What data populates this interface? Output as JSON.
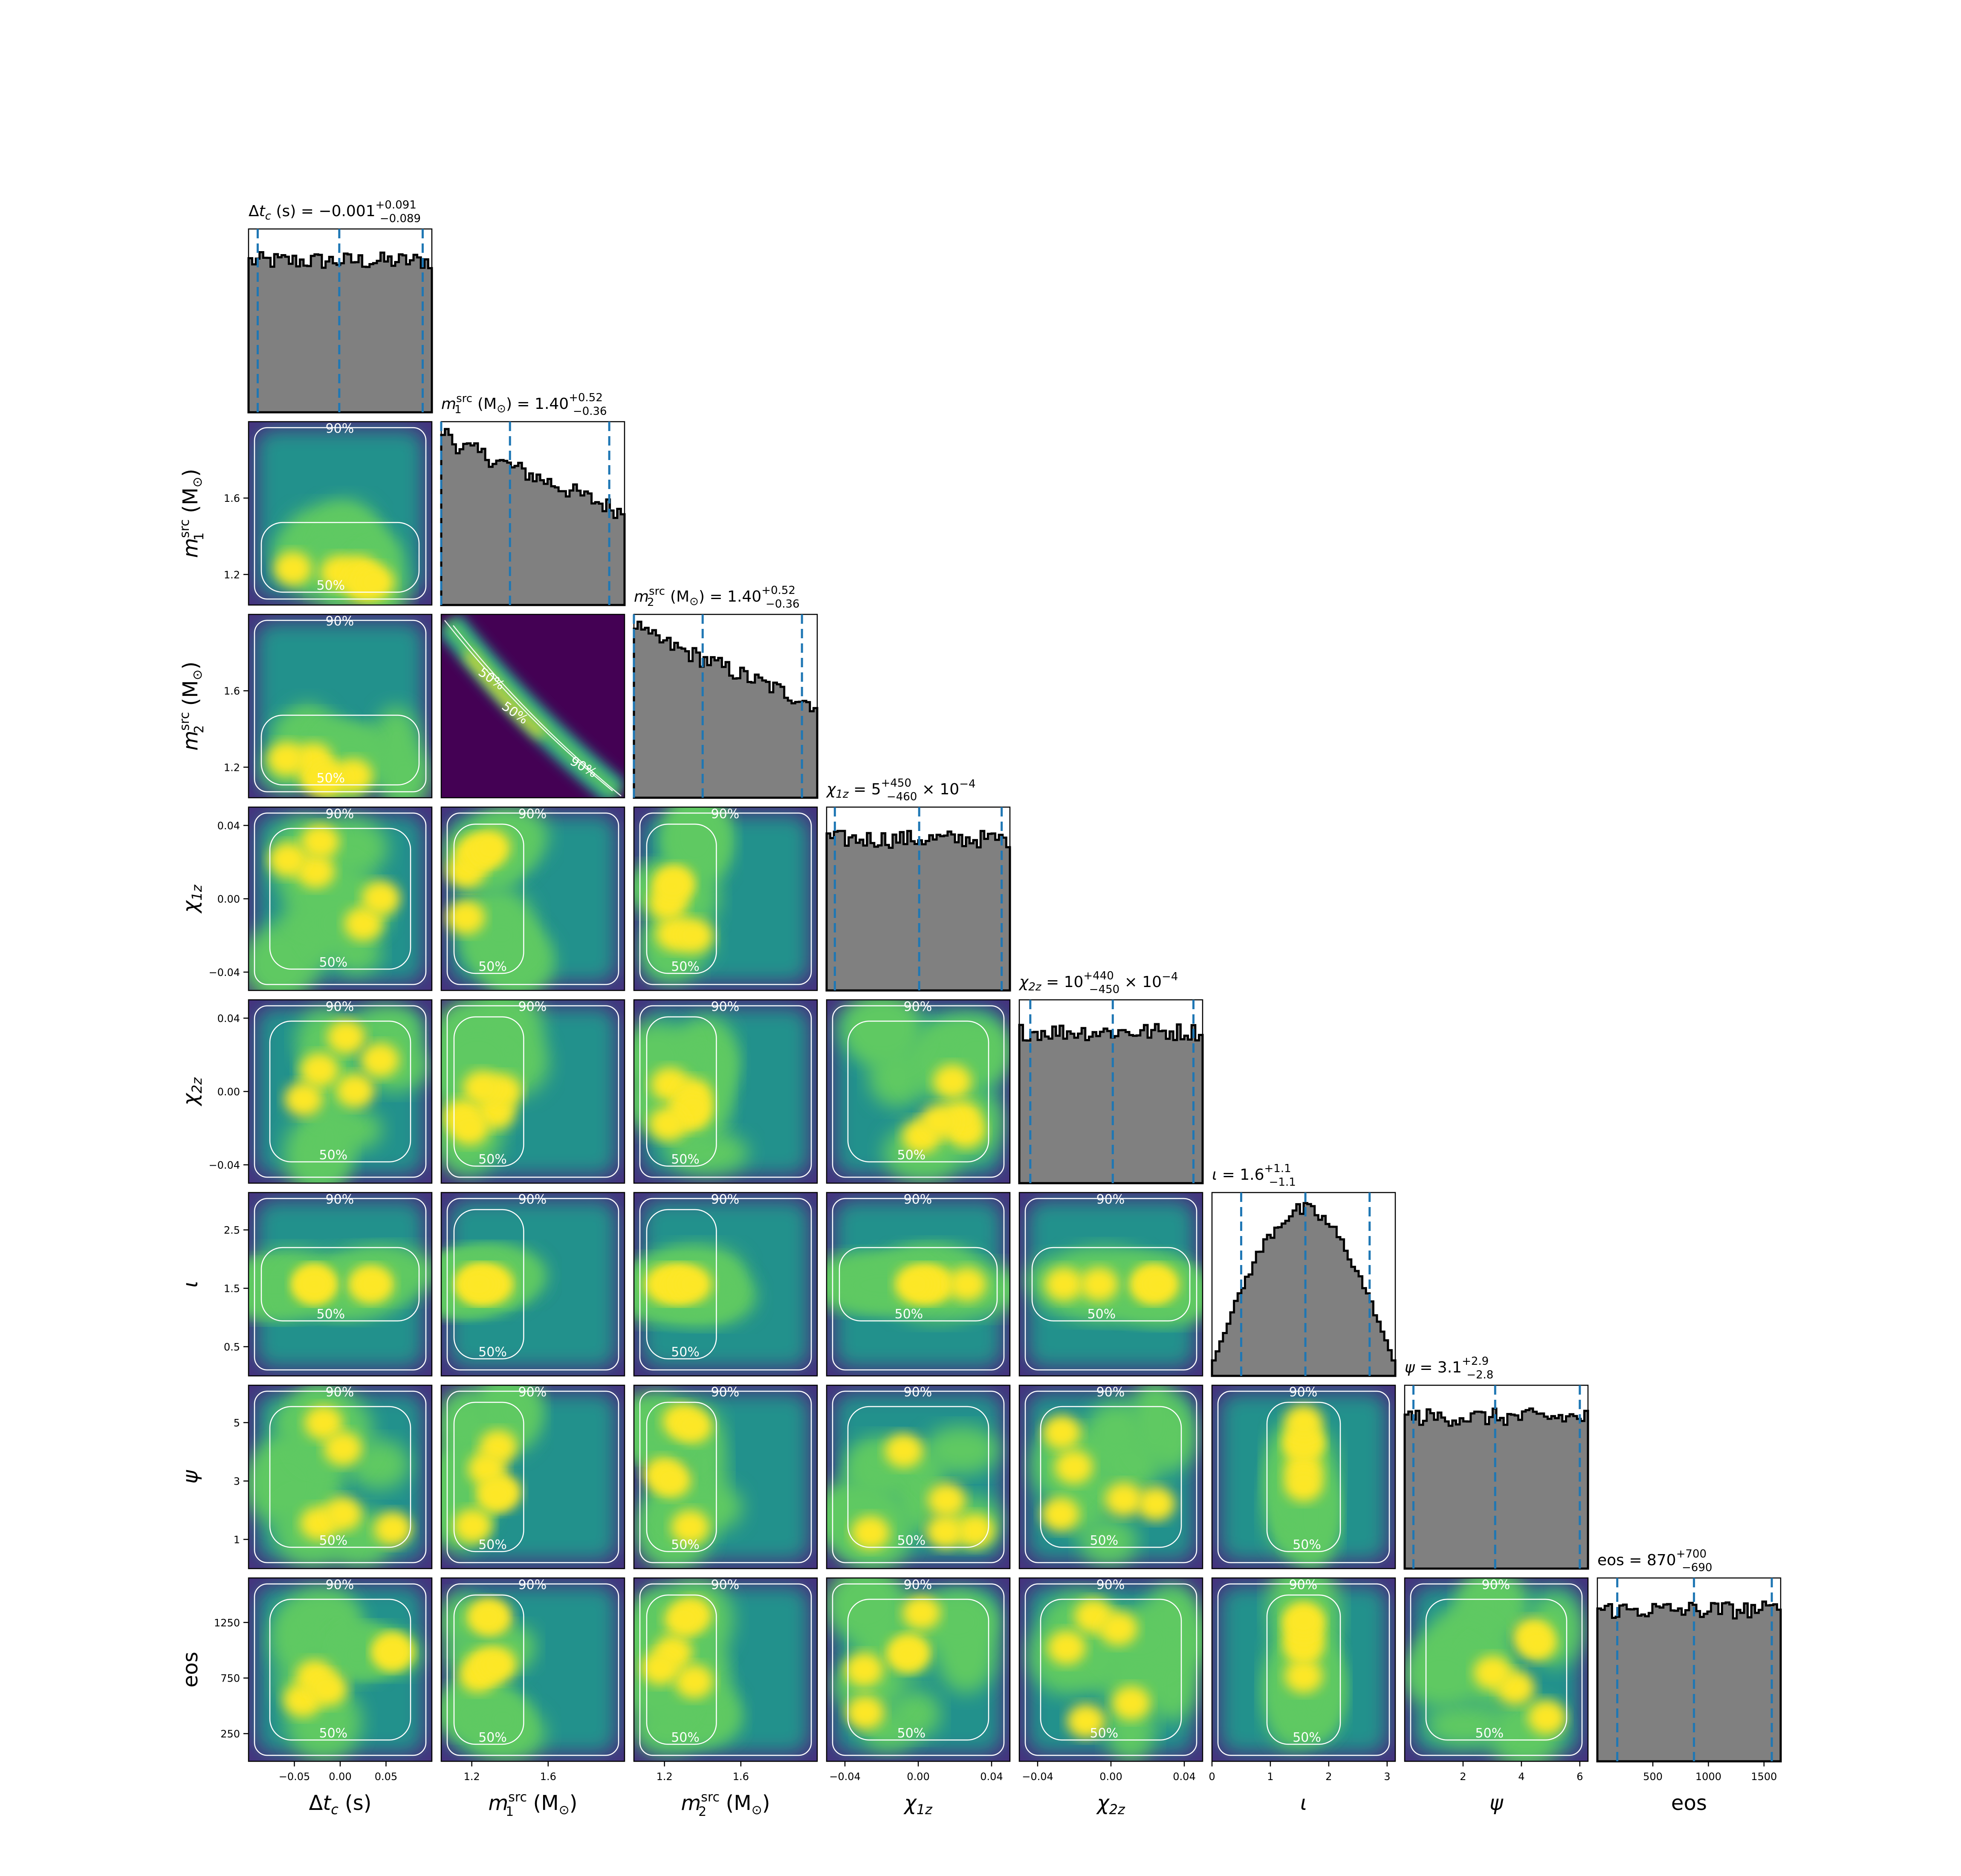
{
  "chart_data": {
    "type": "corner",
    "parameters": [
      {
        "key": "dtc",
        "label": "Δt_c (s)",
        "lim": [
          -0.1,
          0.1
        ],
        "ticks": [
          -0.05,
          0.0,
          0.05
        ],
        "tick_labels": [
          "−0.05",
          "0.00",
          "0.05"
        ],
        "title": "Δt_c (s) = −0.001 +0.091 −0.089",
        "median": -0.001,
        "err_plus": 0.091,
        "err_minus": 0.089,
        "hist_shape": "flat"
      },
      {
        "key": "m1",
        "label": "m_1^src (M_⊙)",
        "lim": [
          1.04,
          2.0
        ],
        "ticks": [
          1.2,
          1.6
        ],
        "tick_labels": [
          "1.2",
          "1.6"
        ],
        "title": "m_1^src (M_⊙) = 1.40 +0.52 −0.36",
        "median": 1.4,
        "err_plus": 0.52,
        "err_minus": 0.36,
        "hist_shape": "falling"
      },
      {
        "key": "m2",
        "label": "m_2^src (M_⊙)",
        "lim": [
          1.04,
          2.0
        ],
        "ticks": [
          1.2,
          1.6
        ],
        "tick_labels": [
          "1.2",
          "1.6"
        ],
        "title": "m_2^src (M_⊙) = 1.40 +0.52 −0.36",
        "median": 1.4,
        "err_plus": 0.52,
        "err_minus": 0.36,
        "hist_shape": "falling"
      },
      {
        "key": "chi1z",
        "label": "χ_1z",
        "lim": [
          -0.05,
          0.05
        ],
        "ticks": [
          -0.04,
          0.0,
          0.04
        ],
        "tick_labels": [
          "−0.04",
          "0.00",
          "0.04"
        ],
        "title": "χ_1z = 5 +450 −460 × 10^−4",
        "median": 0.0005,
        "err_plus": 0.045,
        "err_minus": 0.046,
        "hist_shape": "flat"
      },
      {
        "key": "chi2z",
        "label": "χ_2z",
        "lim": [
          -0.05,
          0.05
        ],
        "ticks": [
          -0.04,
          0.0,
          0.04
        ],
        "tick_labels": [
          "−0.04",
          "0.00",
          "0.04"
        ],
        "title": "χ_2z = 10 +440 −450 × 10^−4",
        "median": 0.001,
        "err_plus": 0.044,
        "err_minus": 0.045,
        "hist_shape": "flat"
      },
      {
        "key": "iota",
        "label": "ι",
        "lim": [
          0.0,
          3.14
        ],
        "ticks": [
          0.5,
          1.5,
          2.5
        ],
        "ticks_x": [
          0,
          1,
          2,
          3
        ],
        "tick_labels": [
          "0.5",
          "1.5",
          "2.5"
        ],
        "tick_labels_x": [
          "0",
          "1",
          "2",
          "3"
        ],
        "title": "ι = 1.6 +1.1 −1.1",
        "median": 1.6,
        "err_plus": 1.1,
        "err_minus": 1.1,
        "hist_shape": "sine"
      },
      {
        "key": "psi",
        "label": "ψ",
        "lim": [
          0.0,
          6.28
        ],
        "ticks": [
          1,
          3,
          5
        ],
        "ticks_x": [
          2,
          4,
          6
        ],
        "tick_labels": [
          "1",
          "3",
          "5"
        ],
        "tick_labels_x": [
          "2",
          "4",
          "6"
        ],
        "title": "ψ = 3.1 +2.9 −2.8",
        "median": 3.1,
        "err_plus": 2.9,
        "err_minus": 2.8,
        "hist_shape": "flat"
      },
      {
        "key": "eos",
        "label": "eos",
        "lim": [
          1,
          1650
        ],
        "ticks": [
          250,
          750,
          1250
        ],
        "ticks_x": [
          500,
          1000,
          1500
        ],
        "tick_labels": [
          "250",
          "750",
          "1250"
        ],
        "tick_labels_x": [
          "500",
          "1000",
          "1500"
        ],
        "title": "eos = 870 +700 −690",
        "median": 870,
        "err_plus": 700,
        "err_minus": 690,
        "hist_shape": "flat"
      }
    ],
    "contour_levels": [
      "50%",
      "90%"
    ],
    "histogram_style": {
      "fill": "#808080",
      "edge": "#000000",
      "quantile_line": "#1f77b4"
    },
    "density_colormap": [
      "#440154",
      "#3b528b",
      "#21918c",
      "#5ec962",
      "#fde725"
    ]
  }
}
